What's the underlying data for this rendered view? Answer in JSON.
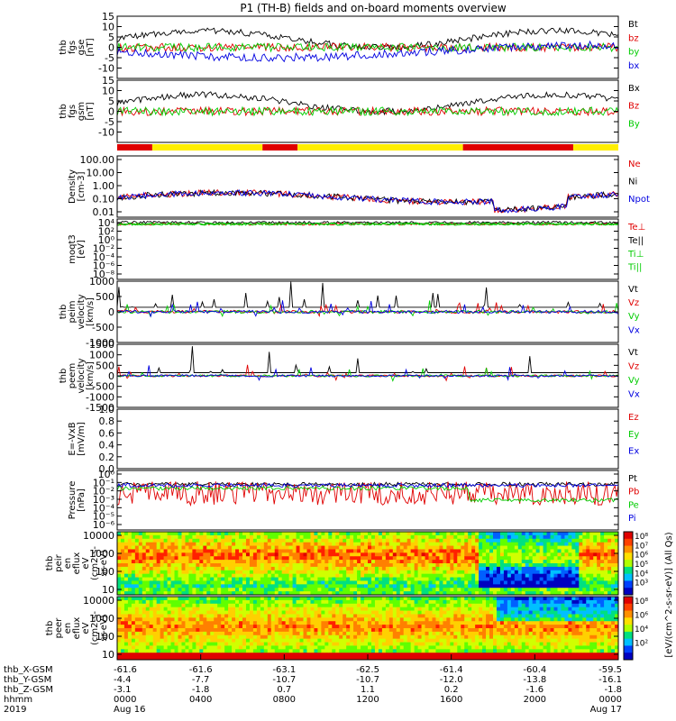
{
  "title": "P1 (TH-B) fields and on-board moments overview",
  "chart_data": {
    "type": "line",
    "title": "P1 (TH-B) fields and on-board moments overview",
    "panels": [
      {
        "id": "fgs_gse",
        "ylabel": [
          "thb",
          "fgs",
          "gse",
          "[nT]"
        ],
        "ylim": [
          -15,
          15
        ],
        "ticks": [
          15,
          10,
          5,
          0,
          -5,
          -10
        ],
        "series": [
          {
            "name": "Bt",
            "color": "#000000"
          },
          {
            "name": "bz",
            "color": "#e00000"
          },
          {
            "name": "by",
            "color": "#00cc00"
          },
          {
            "name": "bx",
            "color": "#0000e0"
          }
        ]
      },
      {
        "id": "fgs_gsm",
        "ylabel": [
          "thb",
          "fgs",
          "gsm",
          "[nT]"
        ],
        "ylim": [
          -15,
          15
        ],
        "ticks": [
          15,
          10,
          5,
          0,
          -5,
          -10
        ],
        "series": [
          {
            "name": "Bx",
            "color": "#000000"
          },
          {
            "name": "Bz",
            "color": "#e00000"
          },
          {
            "name": "By",
            "color": "#00cc00"
          }
        ]
      },
      {
        "id": "density",
        "ylabel": [
          "Density",
          "[cm-3]"
        ],
        "log": true,
        "ylim": [
          0.01,
          100
        ],
        "ticks": [
          "100.00",
          "10.00",
          "1.00",
          "0.10",
          "0.01"
        ],
        "series": [
          {
            "name": "Ne",
            "color": "#e00000"
          },
          {
            "name": "Ni",
            "color": "#000000"
          },
          {
            "name": "Npot",
            "color": "#0000e0"
          }
        ]
      },
      {
        "id": "temperature",
        "ylabel": [
          "moqt3",
          "[eV]"
        ],
        "log": true,
        "ylim": [
          1e-08,
          10000
        ],
        "ticks": [
          "10⁴",
          "10²",
          "10⁰",
          "10⁻²",
          "10⁻⁴",
          "10⁻⁶",
          "10⁻⁸"
        ],
        "series": [
          {
            "name": "Te⊥",
            "color": "#e00000"
          },
          {
            "name": "Te||",
            "color": "#000000"
          },
          {
            "name": "Ti⊥",
            "color": "#00cc00"
          },
          {
            "name": "Ti||",
            "color": "#00cc00"
          }
        ]
      },
      {
        "id": "peim_velocity",
        "ylabel": [
          "thb",
          "peim",
          "velocity",
          "[km/s]"
        ],
        "ylim": [
          -1000,
          1000
        ],
        "ticks": [
          1000,
          500,
          0,
          -500,
          -1000
        ],
        "series": [
          {
            "name": "Vt",
            "color": "#000000"
          },
          {
            "name": "Vz",
            "color": "#e00000"
          },
          {
            "name": "Vy",
            "color": "#00cc00"
          },
          {
            "name": "Vx",
            "color": "#0000e0"
          }
        ]
      },
      {
        "id": "peem_velocity",
        "ylabel": [
          "thb",
          "peem",
          "velocity",
          "[km/s]"
        ],
        "ylim": [
          -1500,
          1500
        ],
        "ticks": [
          1500,
          1000,
          500,
          0,
          -500,
          -1000,
          -1500
        ],
        "series": [
          {
            "name": "Vt",
            "color": "#000000"
          },
          {
            "name": "Vz",
            "color": "#e00000"
          },
          {
            "name": "Vy",
            "color": "#00cc00"
          },
          {
            "name": "Vx",
            "color": "#0000e0"
          }
        ]
      },
      {
        "id": "efield",
        "ylabel": [
          "E=-VxB",
          "[mV/m]"
        ],
        "ylim": [
          0,
          1.0
        ],
        "ticks": [
          "1.0",
          "0.8",
          "0.6",
          "0.4",
          "0.2",
          "0.0"
        ],
        "series": [
          {
            "name": "Ez",
            "color": "#e00000"
          },
          {
            "name": "Ey",
            "color": "#00cc00"
          },
          {
            "name": "Ex",
            "color": "#0000e0"
          }
        ]
      },
      {
        "id": "pressure",
        "ylabel": [
          "Pressure",
          "[nPa]"
        ],
        "log": true,
        "ylim": [
          1e-06,
          1
        ],
        "ticks": [
          "10⁰",
          "10⁻¹",
          "10⁻²",
          "10⁻³",
          "10⁻⁴",
          "10⁻⁵",
          "10⁻⁶"
        ],
        "series": [
          {
            "name": "Pt",
            "color": "#000000"
          },
          {
            "name": "Pb",
            "color": "#e00000"
          },
          {
            "name": "Pe",
            "color": "#00cc00"
          },
          {
            "name": "Pi",
            "color": "#0000e0"
          }
        ]
      },
      {
        "id": "peir_spec",
        "ylabel": [
          "thb",
          "peir",
          "en",
          "eflux",
          "eV",
          "(cm2-s-",
          "sr-eV)"
        ],
        "log": true,
        "ylim": [
          5,
          30000
        ],
        "ticks": [
          "10000",
          "1000",
          "100",
          "10"
        ],
        "spectrogram": true
      },
      {
        "id": "peer_spec",
        "ylabel": [
          "thb",
          "peer",
          "en",
          "eflux",
          "eV",
          "(cm2-s-",
          "sr-eV)"
        ],
        "log": true,
        "ylim": [
          5,
          30000
        ],
        "ticks": [
          "10000",
          "1000",
          "100",
          "10"
        ],
        "spectrogram": true
      }
    ],
    "colorbar": {
      "label": "[eV/(cm^2-s-sr-eV)] (All Qs)",
      "upper_ticks": [
        "10⁸",
        "10⁷",
        "10⁶",
        "10⁵",
        "10⁴",
        "10³"
      ],
      "lower_ticks": [
        "10⁸",
        "10⁶",
        "10⁴",
        "10²"
      ]
    },
    "mode_bar": {
      "segments": [
        {
          "start": 0.0,
          "end": 0.07,
          "color": "#e00000"
        },
        {
          "start": 0.07,
          "end": 0.29,
          "color": "#ffee00"
        },
        {
          "start": 0.29,
          "end": 0.36,
          "color": "#e00000"
        },
        {
          "start": 0.36,
          "end": 0.69,
          "color": "#ffee00"
        },
        {
          "start": 0.69,
          "end": 0.91,
          "color": "#e00000"
        },
        {
          "start": 0.91,
          "end": 1.0,
          "color": "#ffee00"
        }
      ]
    },
    "x_axis": {
      "range_hhmm": [
        "0000",
        "0000"
      ],
      "tick_positions_hours": [
        0,
        4,
        8,
        12,
        16,
        20,
        24
      ],
      "rows": [
        {
          "label": "thb_X-GSM",
          "values": [
            "-61.6",
            "-61.6",
            "-63.1",
            "-62.5",
            "-61.4",
            "-60.4",
            "-59.5"
          ]
        },
        {
          "label": "thb_Y-GSM",
          "values": [
            "-4.4",
            "-7.7",
            "-10.7",
            "-10.7",
            "-12.0",
            "-13.8",
            "-16.1"
          ]
        },
        {
          "label": "thb_Z-GSM",
          "values": [
            "-3.1",
            "-1.8",
            "0.7",
            "1.1",
            "0.2",
            "-1.6",
            "-1.8"
          ]
        },
        {
          "label": "hhmm",
          "values": [
            "0000",
            "0400",
            "0800",
            "1200",
            "1600",
            "2000",
            "0000"
          ]
        },
        {
          "label": "2019",
          "values": [
            "Aug 16",
            "",
            "",
            "",
            "",
            "",
            "Aug 17"
          ]
        }
      ]
    }
  }
}
